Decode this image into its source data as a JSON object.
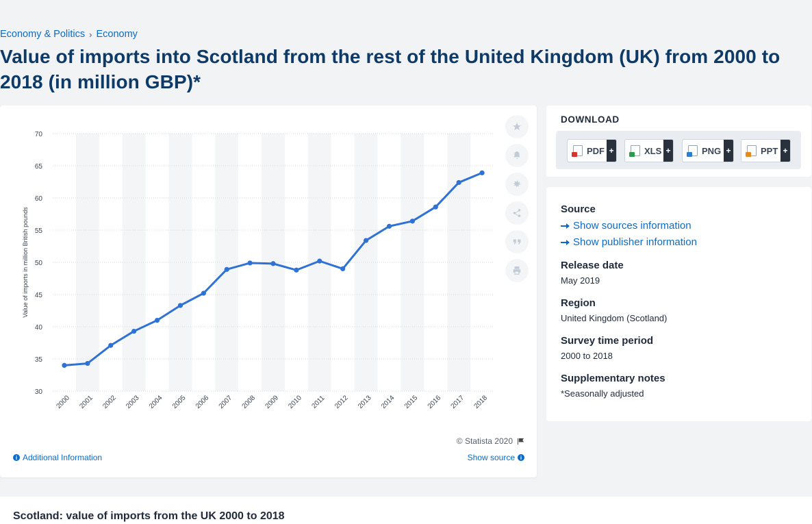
{
  "breadcrumb": {
    "items": [
      "Economy & Politics",
      "Economy"
    ],
    "separator": "›"
  },
  "title": "Value of imports into Scotland from the rest of the United Kingdom (UK) from 2000 to 2018 (in million GBP)*",
  "chart": {
    "copyright": "© Statista 2020",
    "additional_info": "Additional Information",
    "show_source": "Show source"
  },
  "tools": [
    "star-icon",
    "bell-icon",
    "gear-icon",
    "share-icon",
    "quote-icon",
    "print-icon"
  ],
  "download": {
    "title": "DOWNLOAD",
    "buttons": [
      {
        "label": "PDF",
        "plus": "+",
        "color": "#d9342b"
      },
      {
        "label": "XLS",
        "plus": "+",
        "color": "#2f9a4b"
      },
      {
        "label": "PNG",
        "plus": "+",
        "color": "#2a7fd4"
      },
      {
        "label": "PPT",
        "plus": "+",
        "color": "#e58a1f"
      }
    ]
  },
  "info": {
    "source_heading": "Source",
    "sources_link": "Show sources information",
    "publisher_link": "Show publisher information",
    "release_heading": "Release date",
    "release_value": "May 2019",
    "region_heading": "Region",
    "region_value": "United Kingdom (Scotland)",
    "survey_heading": "Survey time period",
    "survey_value": "2000 to 2018",
    "notes_heading": "Supplementary notes",
    "notes_value": "*Seasonally adjusted"
  },
  "bottom": {
    "title": "Scotland: value of imports from the UK 2000 to 2018"
  },
  "colors": {
    "accent": "#0b6bcb",
    "line": "#2f72d6",
    "title": "#0e3a68"
  },
  "chart_data": {
    "type": "line",
    "ylabel": "Value of imports in million British pounds",
    "ylim": [
      30,
      70
    ],
    "yticks": [
      30,
      35,
      40,
      45,
      50,
      55,
      60,
      65,
      70
    ],
    "x": [
      "2000",
      "2001",
      "2002",
      "2003",
      "2004",
      "2005",
      "2006",
      "2007",
      "2008",
      "2009",
      "2010",
      "2011",
      "2012",
      "2013",
      "2014",
      "2015",
      "2016",
      "2017",
      "2018"
    ],
    "values": [
      34.0,
      34.3,
      37.1,
      39.3,
      41.0,
      43.3,
      45.2,
      48.9,
      49.9,
      49.8,
      48.8,
      50.2,
      49.0,
      53.4,
      55.6,
      56.4,
      58.6,
      62.4,
      63.9
    ],
    "grid": true
  }
}
